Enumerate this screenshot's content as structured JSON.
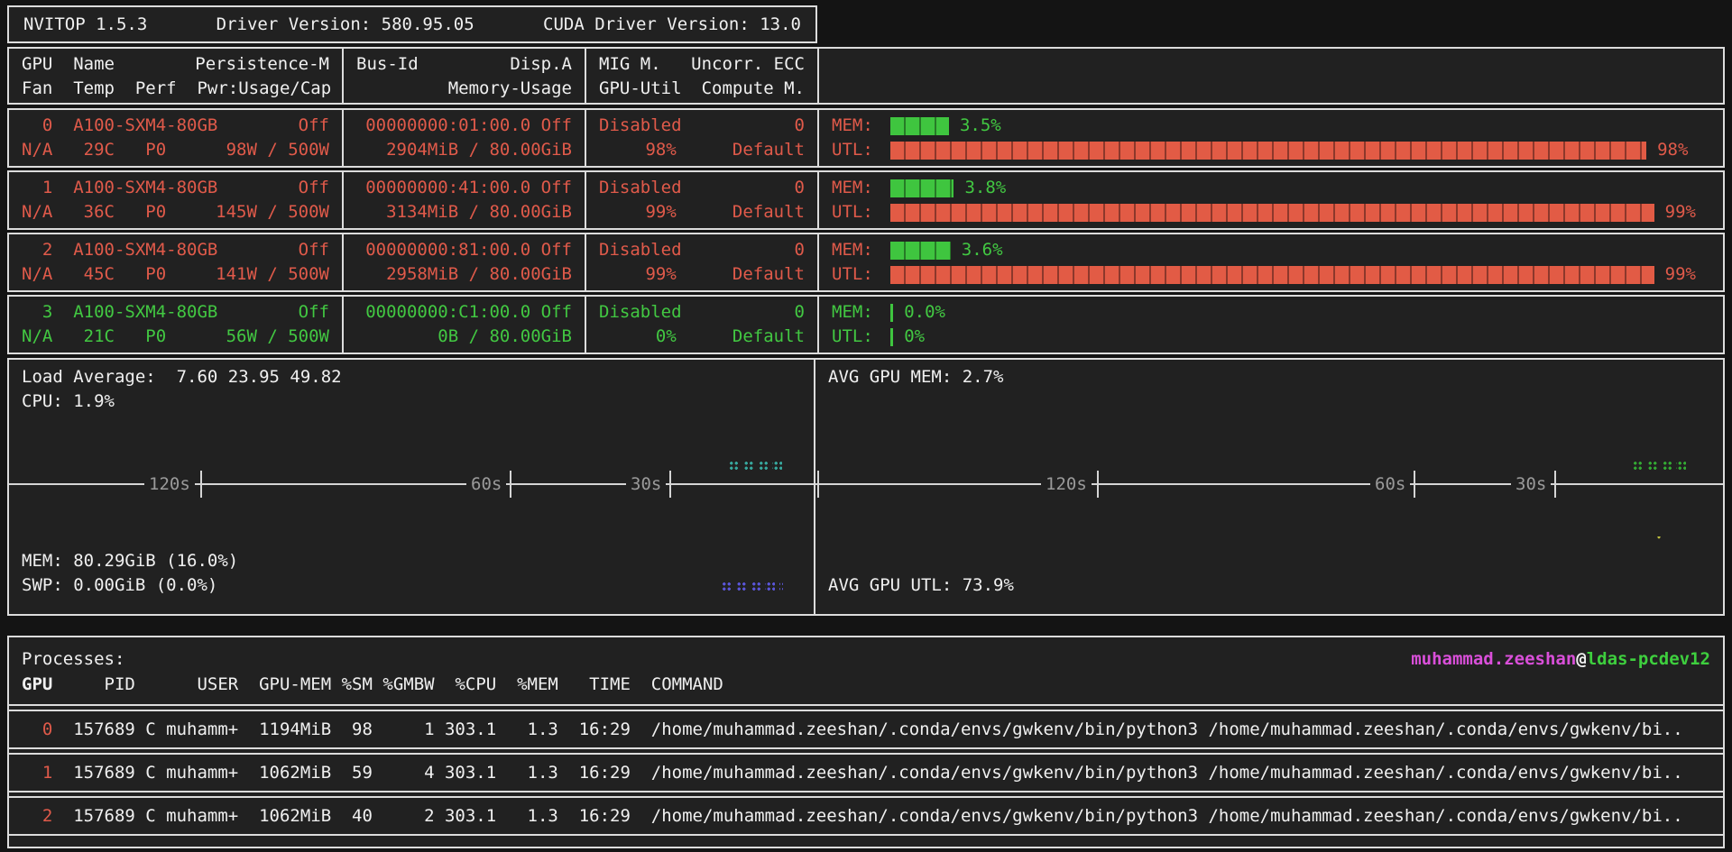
{
  "title_bar": {
    "app": "NVITOP 1.5.3",
    "driver": "Driver Version: 580.95.05",
    "cuda": "CUDA Driver Version: 13.0"
  },
  "table_header": {
    "col1_l1_left": "GPU  Name",
    "col1_l1_right": "Persistence-M",
    "col1_l2": "Fan  Temp  Perf  Pwr:Usage/Cap",
    "col2_l1_left": "Bus-Id",
    "col2_l1_right": "Disp.A",
    "col2_l2_right": "Memory-Usage",
    "col3_l1_left": "MIG M.",
    "col3_l1_right": "Uncorr. ECC",
    "col3_l2_left": "GPU-Util",
    "col3_l2_right": "Compute M."
  },
  "bar_labels": {
    "mem": "MEM:",
    "utl": "UTL:"
  },
  "gpus": [
    {
      "idx": "0",
      "name": "A100-SXM4-80GB",
      "persistence": "Off",
      "fan": "N/A",
      "temp": "29C",
      "perf": "P0",
      "power": "98W / 500W",
      "bus_id": "00000000:01:00.0",
      "disp_a": "Off",
      "memory": "2904MiB / 80.00GiB",
      "mig": "Disabled",
      "ecc": "0",
      "gpu_util": "98%",
      "compute": "Default",
      "state": "busy",
      "mem_pct": 3.5,
      "mem_label": "3.5%",
      "utl_pct": 98,
      "utl_label": "98%"
    },
    {
      "idx": "1",
      "name": "A100-SXM4-80GB",
      "persistence": "Off",
      "fan": "N/A",
      "temp": "36C",
      "perf": "P0",
      "power": "145W / 500W",
      "bus_id": "00000000:41:00.0",
      "disp_a": "Off",
      "memory": "3134MiB / 80.00GiB",
      "mig": "Disabled",
      "ecc": "0",
      "gpu_util": "99%",
      "compute": "Default",
      "state": "busy",
      "mem_pct": 3.8,
      "mem_label": "3.8%",
      "utl_pct": 99,
      "utl_label": "99%"
    },
    {
      "idx": "2",
      "name": "A100-SXM4-80GB",
      "persistence": "Off",
      "fan": "N/A",
      "temp": "45C",
      "perf": "P0",
      "power": "141W / 500W",
      "bus_id": "00000000:81:00.0",
      "disp_a": "Off",
      "memory": "2958MiB / 80.00GiB",
      "mig": "Disabled",
      "ecc": "0",
      "gpu_util": "99%",
      "compute": "Default",
      "state": "busy",
      "mem_pct": 3.6,
      "mem_label": "3.6%",
      "utl_pct": 99,
      "utl_label": "99%"
    },
    {
      "idx": "3",
      "name": "A100-SXM4-80GB",
      "persistence": "Off",
      "fan": "N/A",
      "temp": "21C",
      "perf": "P0",
      "power": "56W / 500W",
      "bus_id": "00000000:C1:00.0",
      "disp_a": "Off",
      "memory": "0B / 80.00GiB",
      "mig": "Disabled",
      "ecc": "0",
      "gpu_util": "0%",
      "compute": "Default",
      "state": "idle",
      "mem_pct": 0,
      "mem_label": "0.0%",
      "utl_pct": 0,
      "utl_label": "0%"
    }
  ],
  "left_chart": {
    "load_average": "Load Average:  7.60 23.95 49.82",
    "cpu": "CPU: 1.9%",
    "mem": "MEM: 80.29GiB (16.0%)",
    "swp": "SWP: 0.00GiB (0.0%)",
    "ticks": [
      "120s",
      "60s",
      "30s"
    ]
  },
  "right_chart": {
    "avg_mem": "AVG GPU MEM: 2.7%",
    "avg_utl": "AVG GPU UTL: 73.9%",
    "ticks": [
      "120s",
      "60s",
      "30s"
    ]
  },
  "processes": {
    "title": "Processes:",
    "user": "muhammad.zeeshan",
    "at": "@",
    "host": "ldas-pcdev12",
    "header_gpu": "GPU",
    "header_rest": "     PID      USER  GPU-MEM %SM %GMBW  %CPU  %MEM   TIME  COMMAND",
    "rows": [
      {
        "gpu": "0",
        "rest": "  157689 C muhamm+  1194MiB  98     1 303.1   1.3  16:29  /home/muhammad.zeeshan/.conda/envs/gwkenv/bin/python3 /home/muhammad.zeeshan/.conda/envs/gwkenv/bi.."
      },
      {
        "gpu": "1",
        "rest": "  157689 C muhamm+  1062MiB  59     4 303.1   1.3  16:29  /home/muhammad.zeeshan/.conda/envs/gwkenv/bin/python3 /home/muhammad.zeeshan/.conda/envs/gwkenv/bi.."
      },
      {
        "gpu": "2",
        "rest": "  157689 C muhamm+  1062MiB  40     2 303.1   1.3  16:29  /home/muhammad.zeeshan/.conda/envs/gwkenv/bin/python3 /home/muhammad.zeeshan/.conda/envs/gwkenv/bi.."
      }
    ]
  },
  "colors": {
    "busy_red": "#e05a4a",
    "idle_green": "#42c842",
    "mem_bar_green": "#3fc53f",
    "utl_bar_red": "#e25b45",
    "username_magenta": "#d94fd9",
    "host_green": "#3ecf3e",
    "cpu_dots_teal": "#37a79d",
    "mem_dots_magenta": "#c04ac0",
    "swp_dots_indigo": "#5a55d8",
    "gpu_mem_dots_green": "#33a833",
    "gpu_utl_dots_yellow": "#bdbd3e"
  }
}
